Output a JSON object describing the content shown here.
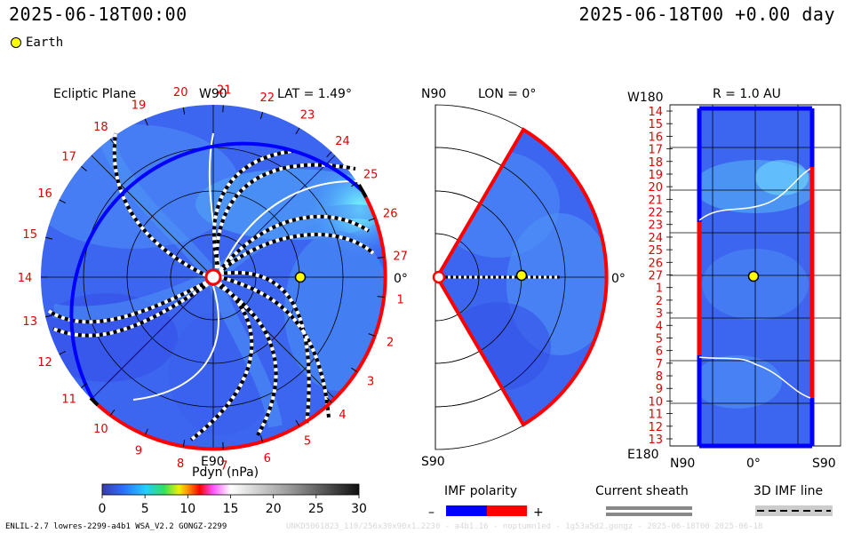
{
  "header": {
    "left": "2025-06-18T00:00",
    "right": "2025-06-18T00 +0.00 day"
  },
  "legend": {
    "earth": "Earth"
  },
  "ecliptic": {
    "title": "Ecliptic Plane",
    "top_label": "W90",
    "lat_label": "LAT = 1.49°",
    "bottom_label": "E90",
    "right_label": "0°",
    "sector_numbers": [
      "14",
      "15",
      "16",
      "17",
      "18",
      "19",
      "20",
      "21",
      "22",
      "23",
      "24",
      "25",
      "26",
      "27",
      "1",
      "2",
      "3",
      "4",
      "5",
      "6",
      "7",
      "8",
      "9",
      "10",
      "11",
      "12",
      "13"
    ]
  },
  "meridional": {
    "top_label": "N90",
    "lon_label": "LON = 0°",
    "bottom_label": "S90",
    "right_label": "0°"
  },
  "radial": {
    "top_left_label": "W180",
    "title": "R = 1.0 AU",
    "bottom_left_label": "E180",
    "bottom_labels": [
      "N90",
      "0°",
      "S90"
    ],
    "rows": [
      "14",
      "15",
      "16",
      "17",
      "18",
      "19",
      "20",
      "21",
      "22",
      "23",
      "24",
      "25",
      "26",
      "27",
      "1",
      "2",
      "3",
      "4",
      "5",
      "6",
      "7",
      "8",
      "9",
      "10",
      "11",
      "12",
      "13"
    ]
  },
  "colorbar": {
    "label": "Pdyn (nPa)",
    "ticks": [
      "0",
      "5",
      "10",
      "15",
      "20",
      "25",
      "30"
    ]
  },
  "imf_polarity": {
    "label": "IMF polarity",
    "minus": "–",
    "plus": "+"
  },
  "current_sheath": {
    "label": "Current sheath"
  },
  "imf_line": {
    "label": "3D IMF line"
  },
  "footer": {
    "left": "ENLIL-2.7 lowres-2299-a4b1 WSA_V2.2 GONGZ-2299",
    "right": "UNKD5061823_110/256x30x90x1.2230 - a4b1.16 - noptumn1ed - 1g53a5d2.gongz - 2025-06-18T00 2025-06-18"
  },
  "colors": {
    "background_blue": "#3d66f0",
    "polarity_neg": "#0000ff",
    "polarity_pos": "#ff0000",
    "earth": "#ffff00"
  }
}
